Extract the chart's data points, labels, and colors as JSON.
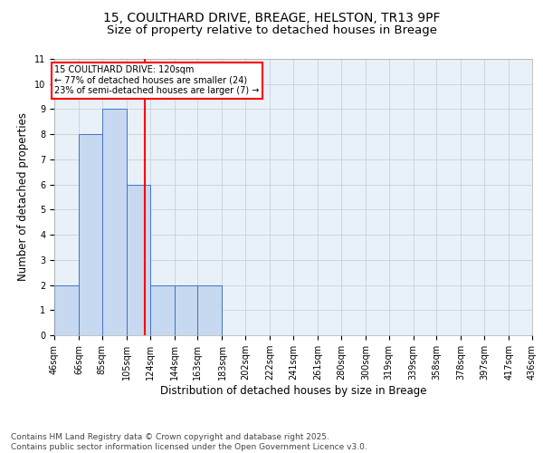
{
  "title_line1": "15, COULTHARD DRIVE, BREAGE, HELSTON, TR13 9PF",
  "title_line2": "Size of property relative to detached houses in Breage",
  "xlabel": "Distribution of detached houses by size in Breage",
  "ylabel": "Number of detached properties",
  "footer": "Contains HM Land Registry data © Crown copyright and database right 2025.\nContains public sector information licensed under the Open Government Licence v3.0.",
  "bar_edges": [
    46,
    66,
    85,
    105,
    124,
    144,
    163,
    183,
    202,
    222,
    241,
    261,
    280,
    300,
    319,
    339,
    358,
    378,
    397,
    417,
    436
  ],
  "bar_values": [
    2,
    8,
    9,
    6,
    2,
    2,
    2,
    0,
    0,
    0,
    0,
    0,
    0,
    0,
    0,
    0,
    0,
    0,
    0,
    0
  ],
  "bar_color": "#c6d9f0",
  "bar_edgecolor": "#4472c4",
  "property_size": 120,
  "annotation_text": "15 COULTHARD DRIVE: 120sqm\n← 77% of detached houses are smaller (24)\n23% of semi-detached houses are larger (7) →",
  "annotation_box_color": "white",
  "annotation_box_edgecolor": "red",
  "vline_color": "red",
  "ylim": [
    0,
    11
  ],
  "yticks": [
    0,
    1,
    2,
    3,
    4,
    5,
    6,
    7,
    8,
    9,
    10,
    11
  ],
  "grid_color": "#c8d0d8",
  "bg_color": "#e8f0f8",
  "title1_fontsize": 10,
  "title2_fontsize": 9.5,
  "tick_label_fontsize": 7,
  "axis_label_fontsize": 8.5,
  "footer_fontsize": 6.5,
  "annotation_fontsize": 7
}
